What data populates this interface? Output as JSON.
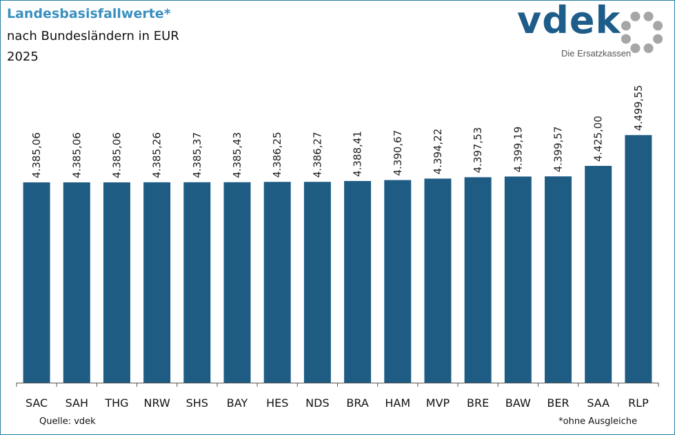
{
  "header": {
    "title": "Landesbasisfallwerte*",
    "subtitle": "nach Bundesländern  in EUR",
    "year": "2025"
  },
  "logo": {
    "word": "vdek",
    "tagline": "Die Ersatzkassen"
  },
  "footer": {
    "source": "Quelle: vdek",
    "footnote": "*ohne Ausgleiche"
  },
  "colors": {
    "bar": "#1e5c84",
    "title": "#3a8fbf",
    "frame": "#2b7fa3",
    "logo": "#1e5c8a",
    "logo_dots": "#a6a6a6"
  },
  "chart_data": {
    "type": "bar",
    "categories": [
      "SAC",
      "SAH",
      "THG",
      "NRW",
      "SHS",
      "BAY",
      "HES",
      "NDS",
      "BRA",
      "HAM",
      "MVP",
      "BRE",
      "BAW",
      "BER",
      "SAA",
      "RLP"
    ],
    "values": [
      4385.06,
      4385.06,
      4385.06,
      4385.26,
      4385.37,
      4385.43,
      4386.25,
      4386.27,
      4388.41,
      4390.67,
      4394.22,
      4397.53,
      4399.19,
      4399.57,
      4425.0,
      4499.55
    ],
    "labels": [
      "4.385,06",
      "4.385,06",
      "4.385,06",
      "4.385,26",
      "4.385,37",
      "4.385,43",
      "4.386,25",
      "4.386,27",
      "4.388,41",
      "4.390,67",
      "4.394,22",
      "4.397,53",
      "4.399,19",
      "4.399,57",
      "4.425,00",
      "4.499,55"
    ],
    "ylim": [
      3900,
      4560
    ],
    "grid": false,
    "legend": "none"
  }
}
